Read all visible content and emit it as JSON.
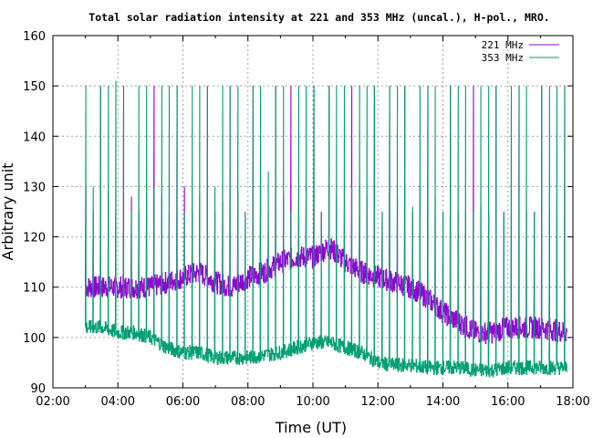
{
  "chart_data": {
    "type": "line",
    "title": "Total solar radiation intensity at 221 and 353 MHz (uncal.), H-pol., MRO.",
    "xlabel": "Time (UT)",
    "ylabel": "Arbitrary unit",
    "xlim": [
      2,
      18
    ],
    "ylim": [
      90,
      160
    ],
    "xticks": [
      {
        "v": 2,
        "label": "02:00"
      },
      {
        "v": 4,
        "label": "04:00"
      },
      {
        "v": 6,
        "label": "06:00"
      },
      {
        "v": 8,
        "label": "08:00"
      },
      {
        "v": 10,
        "label": "10:00"
      },
      {
        "v": 12,
        "label": "12:00"
      },
      {
        "v": 14,
        "label": "14:00"
      },
      {
        "v": 16,
        "label": "16:00"
      },
      {
        "v": 18,
        "label": "18:00"
      }
    ],
    "yticks": [
      90,
      100,
      110,
      120,
      130,
      140,
      150,
      160
    ],
    "grid": true,
    "legend": "top-right",
    "spike_start_h": 3.0,
    "spike_interval_h": 0.234,
    "series": [
      {
        "name": "221 MHz",
        "color": "#9400d3",
        "x": [
          3,
          3.5,
          4,
          4.5,
          5,
          5.5,
          6,
          6.5,
          7,
          7.5,
          8,
          8.5,
          9,
          9.5,
          10,
          10.5,
          11,
          11.5,
          12,
          12.5,
          13,
          13.5,
          14,
          14.5,
          15,
          15.5,
          16,
          16.5,
          17,
          17.8
        ],
        "y": [
          110,
          110,
          110,
          110,
          110,
          111,
          112,
          113,
          111,
          110,
          112,
          113,
          115,
          116,
          116,
          118,
          115,
          113,
          112,
          111,
          110,
          108,
          105,
          103,
          101,
          101,
          102,
          102,
          102,
          101
        ],
        "spike_peaks": [
          130,
          125,
          150,
          129,
          125,
          150,
          128,
          125,
          130,
          150,
          128,
          125,
          150,
          130,
          125,
          128,
          150,
          125,
          127,
          150,
          129,
          125,
          150,
          130,
          125,
          150,
          128,
          150,
          125,
          130,
          150,
          125,
          150,
          128,
          125,
          150,
          130,
          128,
          150,
          125,
          150,
          128,
          150,
          125,
          130,
          150,
          128,
          125,
          150,
          125,
          125,
          150,
          126,
          125,
          150,
          125,
          125,
          150,
          125,
          125,
          150,
          125,
          125,
          150
        ]
      },
      {
        "name": "353 MHz",
        "color": "#009e73",
        "x": [
          3,
          3.5,
          4,
          4.5,
          5,
          5.5,
          6,
          6.5,
          7,
          7.5,
          8,
          8.5,
          9,
          9.5,
          10,
          10.5,
          11,
          11.5,
          12,
          12.5,
          13,
          13.5,
          14,
          14.5,
          15,
          15.5,
          16,
          16.5,
          17,
          17.8
        ],
        "y": [
          102,
          102,
          101,
          101,
          100,
          98,
          97,
          97,
          96,
          96,
          96,
          96.5,
          97,
          98,
          99,
          99,
          98,
          97,
          95,
          94.5,
          94.5,
          94,
          94,
          94,
          93.5,
          93.5,
          94,
          94,
          94,
          94
        ],
        "spike_peaks": [
          150,
          130,
          150,
          150,
          151,
          150,
          125,
          150,
          150,
          130,
          150,
          150,
          150,
          125,
          150,
          150,
          150,
          130,
          150,
          150,
          150,
          125,
          150,
          150,
          133,
          150,
          150,
          125,
          150,
          150,
          150,
          125,
          150,
          150,
          150,
          130,
          150,
          150,
          150,
          125,
          150,
          150,
          150,
          126,
          150,
          150,
          150,
          125,
          150,
          150,
          150,
          125,
          150,
          150,
          150,
          125,
          150,
          150,
          150,
          125,
          150,
          150,
          150,
          150
        ]
      }
    ]
  }
}
